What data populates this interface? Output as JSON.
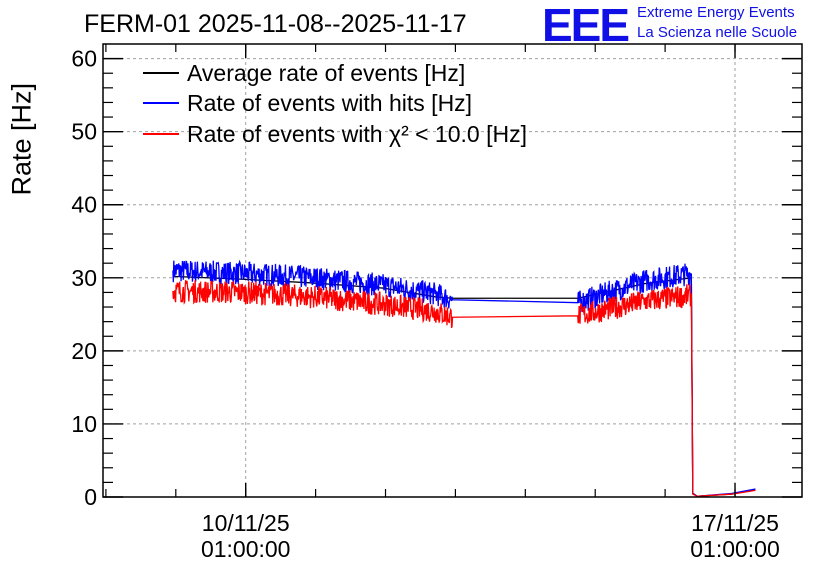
{
  "header": {
    "title": "FERM-01 2025-11-08--2025-11-17",
    "logo_text": "EEE",
    "logo_line1": "Extreme Energy Events",
    "logo_line2": "La Scienza nelle Scuole"
  },
  "chart_data": {
    "type": "line",
    "ylabel": "Rate [Hz]",
    "ylim": [
      0,
      62
    ],
    "yticks": [
      "0",
      "10",
      "20",
      "30",
      "40",
      "50",
      "60"
    ],
    "xlim_days": [
      "2025-11-08",
      "2025-11-17"
    ],
    "xticks": [
      {
        "date": "10/11/25",
        "time": "01:00:00"
      },
      {
        "date": "17/11/25",
        "time": "01:00:00"
      }
    ],
    "grid": true,
    "legend_position": "top-left",
    "series": [
      {
        "name": "Average rate of events [Hz]",
        "color": "#000000",
        "points": [
          [
            "2025-11-09 00:00",
            30.2
          ],
          [
            "2025-11-10 00:00",
            29.8
          ],
          [
            "2025-11-11 00:00",
            29.3
          ],
          [
            "2025-11-12 00:00",
            28.6
          ],
          [
            "2025-11-12 18:00",
            27.4
          ],
          [
            "2025-11-13 00:00",
            27.2
          ],
          [
            "2025-11-14 19:00",
            27.2
          ],
          [
            "2025-11-15 18:00",
            29.2
          ],
          [
            "2025-11-16 10:00",
            30.0
          ],
          [
            "2025-11-16 10:30",
            0.5
          ],
          [
            "2025-11-16 12:00",
            0.1
          ],
          [
            "2025-11-17 00:00",
            0.4
          ],
          [
            "2025-11-17 08:00",
            1.0
          ]
        ]
      },
      {
        "name": "Rate of events with hits [Hz]",
        "color": "#0000ff",
        "points": [
          [
            "2025-11-09 00:00",
            31.0
          ],
          [
            "2025-11-10 00:00",
            30.6
          ],
          [
            "2025-11-11 00:00",
            30.0
          ],
          [
            "2025-11-12 00:00",
            29.0
          ],
          [
            "2025-11-12 18:00",
            27.8
          ],
          [
            "2025-11-13 00:00",
            27.0
          ],
          [
            "2025-11-14 19:00",
            26.6
          ],
          [
            "2025-11-15 18:00",
            29.6
          ],
          [
            "2025-11-16 10:00",
            30.6
          ],
          [
            "2025-11-16 10:30",
            0.5
          ],
          [
            "2025-11-16 12:00",
            0.1
          ],
          [
            "2025-11-17 00:00",
            0.5
          ],
          [
            "2025-11-17 08:00",
            1.1
          ]
        ]
      },
      {
        "name": "Rate of events with χ² < 10.0 [Hz]",
        "color": "#ff0000",
        "points": [
          [
            "2025-11-09 00:00",
            28.2
          ],
          [
            "2025-11-10 00:00",
            28.0
          ],
          [
            "2025-11-11 00:00",
            27.4
          ],
          [
            "2025-11-12 00:00",
            26.4
          ],
          [
            "2025-11-12 18:00",
            25.4
          ],
          [
            "2025-11-13 00:00",
            24.6
          ],
          [
            "2025-11-14 19:00",
            24.8
          ],
          [
            "2025-11-15 18:00",
            26.8
          ],
          [
            "2025-11-16 10:00",
            27.6
          ],
          [
            "2025-11-16 10:30",
            0.4
          ],
          [
            "2025-11-16 12:00",
            0.1
          ],
          [
            "2025-11-17 00:00",
            0.4
          ],
          [
            "2025-11-17 08:00",
            0.9
          ]
        ]
      }
    ]
  }
}
